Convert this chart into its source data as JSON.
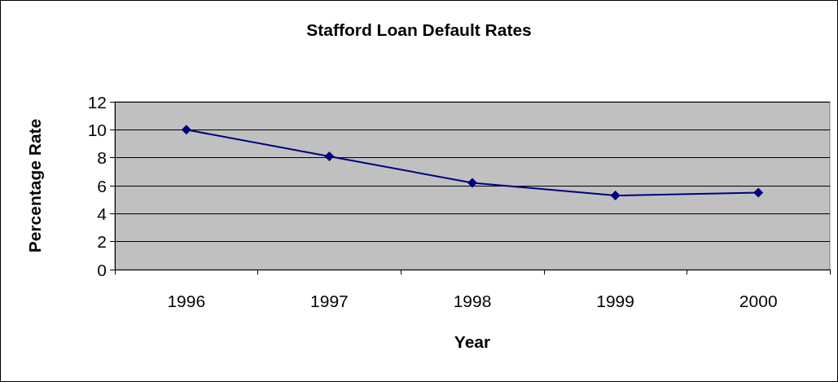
{
  "chart_data": {
    "type": "line",
    "title": "Stafford Loan Default Rates",
    "xlabel": "Year",
    "ylabel": "Percentage Rate",
    "categories": [
      "1996",
      "1997",
      "1998",
      "1999",
      "2000"
    ],
    "series": [
      {
        "color": "#000080",
        "values": [
          10,
          8.1,
          6.2,
          5.3,
          5.5
        ]
      }
    ],
    "ylim": [
      0,
      12
    ],
    "yticks": [
      0,
      2,
      4,
      6,
      8,
      10,
      12
    ],
    "grid": "y",
    "marker": "diamond",
    "line_style": "solid"
  }
}
